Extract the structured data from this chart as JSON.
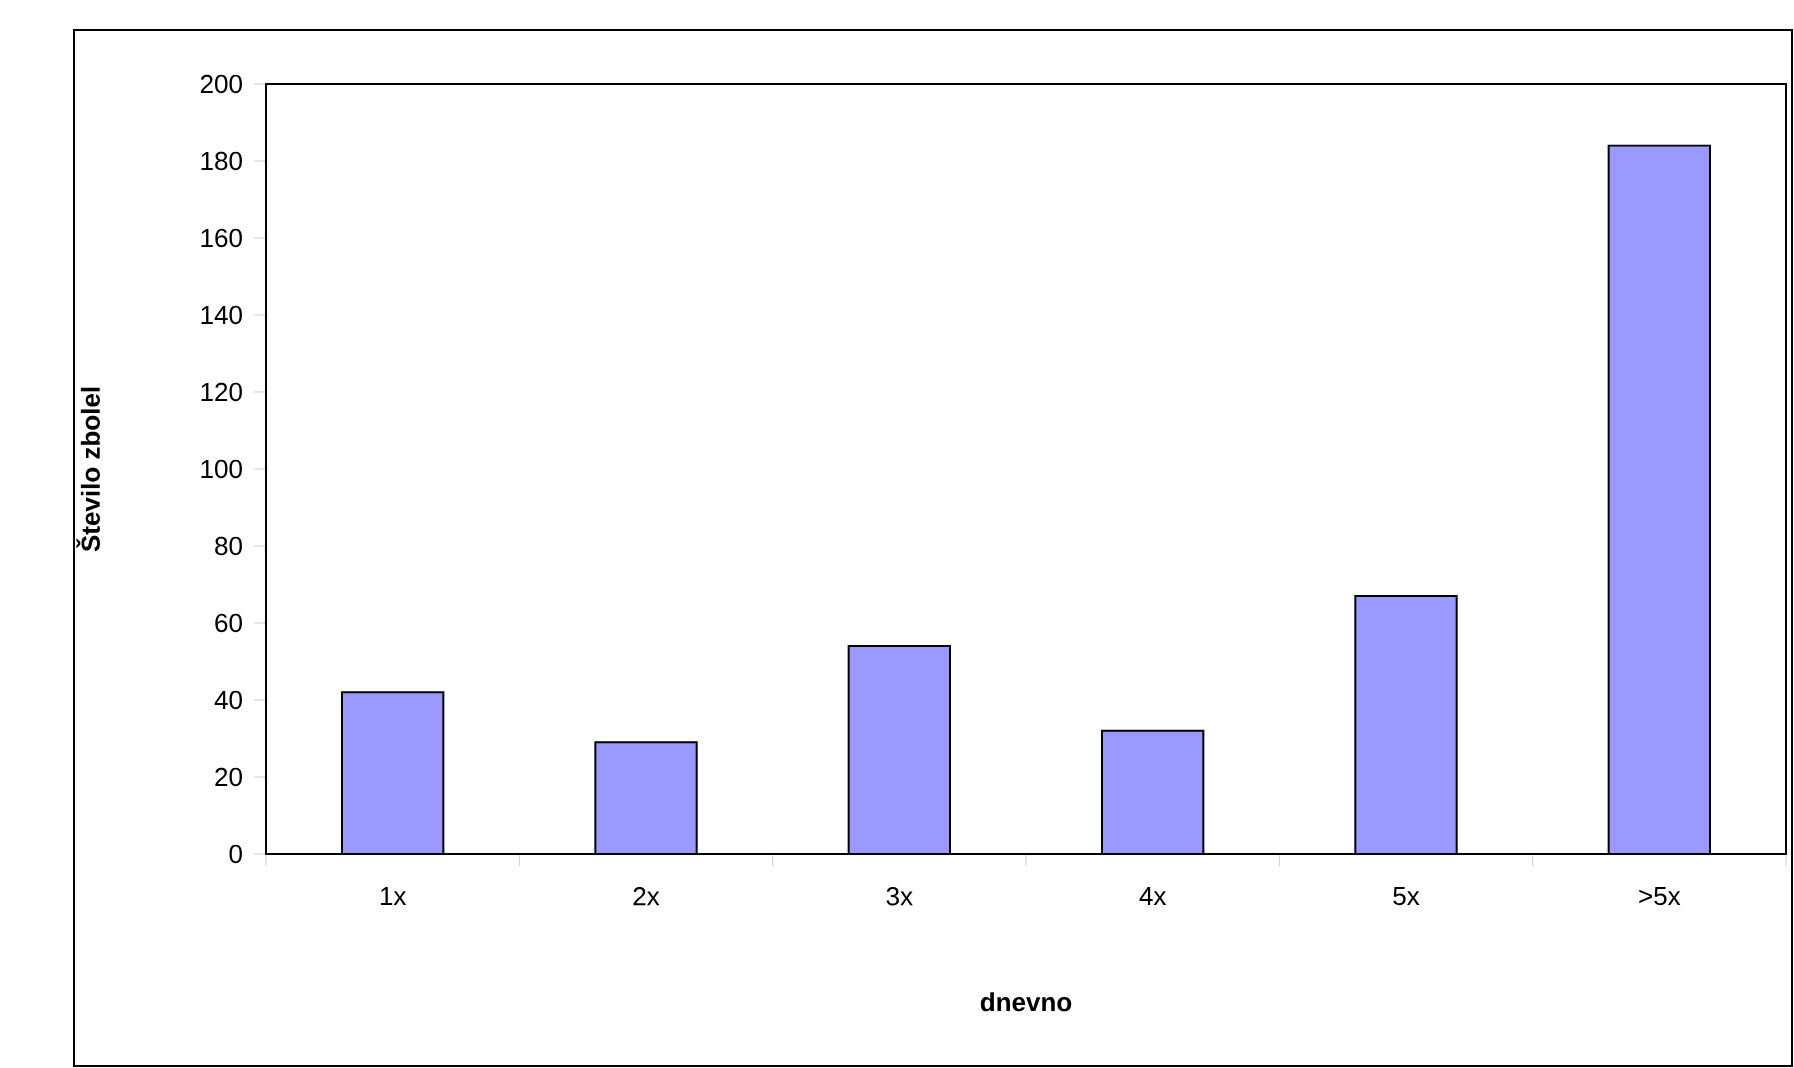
{
  "chart_data": {
    "type": "bar",
    "xlabel": "dnevno",
    "ylabel": "Število zbolel",
    "categories": [
      "1x",
      "2x",
      "3x",
      "4x",
      "5x",
      ">5x"
    ],
    "values": [
      42,
      29,
      54,
      32,
      67,
      184
    ],
    "color": "#9999ff",
    "ylim": [
      0,
      200
    ],
    "yticks": [
      0,
      20,
      40,
      60,
      80,
      100,
      120,
      140,
      160,
      180,
      200
    ],
    "grid": false
  }
}
